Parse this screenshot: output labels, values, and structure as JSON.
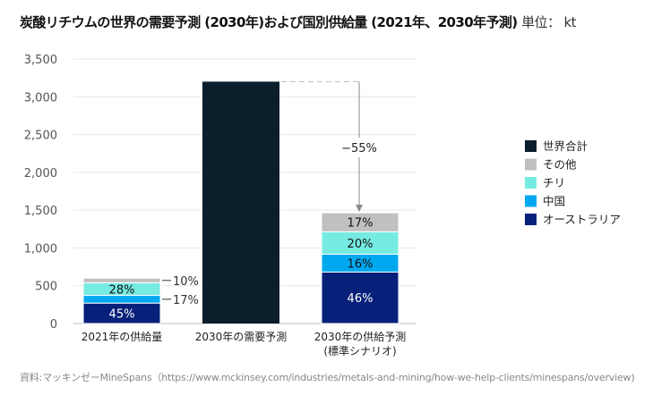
{
  "title": "炭酸リチウムの世界の需要予測 (2030年)および国別供給量 (2021年、2030年予測)",
  "unit_label": "単位： kt",
  "source": "資料:マッキンゼーMineSpans（https://www.mckinsey.com/industries/metals-and-mining/how-we-help-clients/minespans/overview)",
  "chart_data": {
    "type": "bar",
    "stacked": true,
    "ylim": [
      0,
      3500
    ],
    "yticks": [
      0,
      500,
      1000,
      1500,
      2000,
      2500,
      3000,
      3500
    ],
    "ytick_labels": [
      "0",
      "500",
      "1,000",
      "1,500",
      "2,000",
      "2,500",
      "3,000",
      "3,500"
    ],
    "categories": [
      "2021年の供給量",
      "2030年の需要予測",
      "2030年の供給予測"
    ],
    "category_sublabels": [
      "",
      "",
      "(標準シナリオ)"
    ],
    "totals": [
      600,
      3200,
      1465
    ],
    "series": [
      {
        "name": "オーストラリア",
        "color": "#07207a",
        "shares": [
          45,
          0,
          46
        ],
        "labels": [
          "45%",
          "",
          "46%"
        ]
      },
      {
        "name": "中国",
        "color": "#00a8f0",
        "shares": [
          17,
          0,
          16
        ],
        "labels": [
          "17%",
          "",
          "16%"
        ]
      },
      {
        "name": "チリ",
        "color": "#76ebe2",
        "shares": [
          28,
          0,
          20
        ],
        "labels": [
          "28%",
          "",
          "20%"
        ]
      },
      {
        "name": "その他",
        "color": "#c0c0c0",
        "shares": [
          10,
          0,
          17
        ],
        "labels": [
          "10%",
          "",
          "17%"
        ]
      },
      {
        "name": "世界合計",
        "color": "#0a1e2c",
        "shares": [
          0,
          100,
          0
        ],
        "labels": [
          "",
          "",
          ""
        ]
      }
    ],
    "legend_order": [
      "世界合計",
      "その他",
      "チリ",
      "中国",
      "オーストラリア"
    ],
    "legend_position": "right",
    "annotation": "−55%",
    "grid": true
  }
}
